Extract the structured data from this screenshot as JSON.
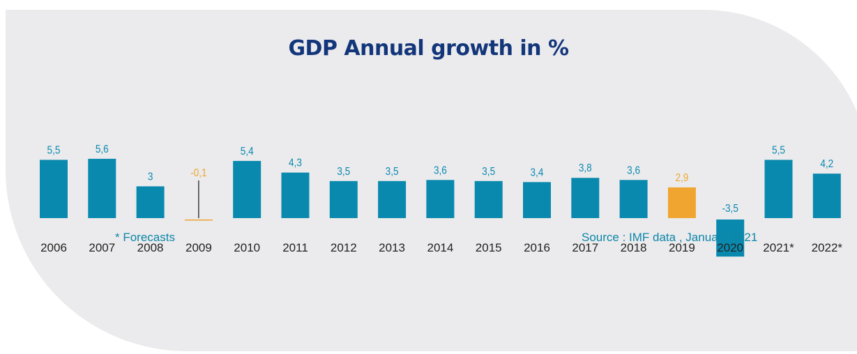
{
  "title": "GDP Annual growth in %",
  "footnote": "* Forecasts",
  "source": "Source : IMF data , January 2021",
  "colors": {
    "bar": "#0a89ae",
    "highlight": "#f0a530",
    "value_label": "#0a89ae",
    "axis_label": "#222222",
    "title": "#13367a"
  },
  "chart_data": {
    "type": "bar",
    "title": "GDP Annual growth in %",
    "categories": [
      "2006",
      "2007",
      "2008",
      "2009",
      "2010",
      "2011",
      "2012",
      "2013",
      "2014",
      "2015",
      "2016",
      "2017",
      "2018",
      "2019",
      "2020",
      "2021*",
      "2022*"
    ],
    "values": [
      5.5,
      5.6,
      3,
      -0.1,
      5.4,
      4.3,
      3.5,
      3.5,
      3.6,
      3.5,
      3.4,
      3.8,
      3.6,
      2.9,
      -3.5,
      5.5,
      4.2
    ],
    "value_labels": [
      "5,5",
      "5,6",
      "3",
      "-0,1",
      "5,4",
      "4,3",
      "3,5",
      "3,5",
      "3,6",
      "3,5",
      "3,4",
      "3,8",
      "3,6",
      "2,9",
      "-3,5",
      "5,5",
      "4,2"
    ],
    "highlighted": [
      "2009",
      "2019"
    ],
    "xlabel": "",
    "ylabel": "",
    "grid": false,
    "legend": "none"
  }
}
